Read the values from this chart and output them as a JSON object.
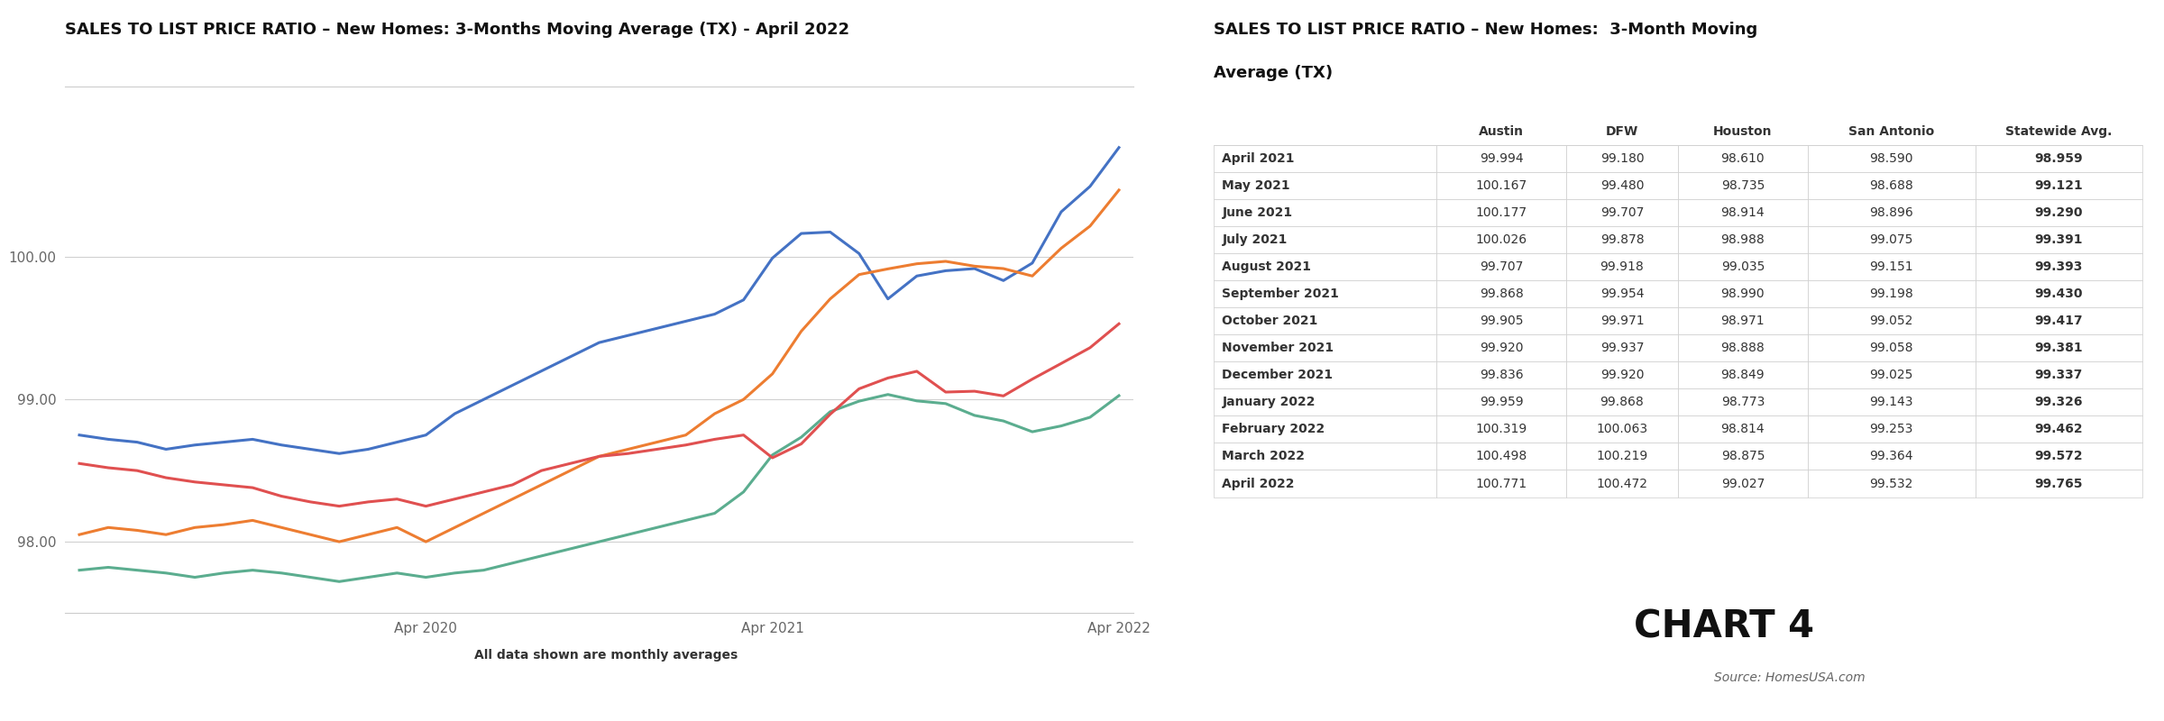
{
  "chart_title": "SALES TO LIST PRICE RATIO – New Homes: 3-Months Moving Average (TX) - April 2022",
  "table_title_line1": "SALES TO LIST PRICE RATIO – New Homes:  3-Month Moving",
  "table_title_line2": "Average (TX)",
  "chart4_label": "CHART 4",
  "source_label": "Source: HomesUSA.com",
  "subtitle": "All data shown are monthly averages",
  "legend_items": [
    "Austin",
    "DFW",
    "Houston",
    "San Antonio"
  ],
  "line_colors": {
    "Austin": "#4472C4",
    "DFW": "#ED7D31",
    "Houston": "#5BAD8F",
    "San Antonio": "#E05050"
  },
  "austin_data": [
    98.75,
    98.72,
    98.7,
    98.65,
    98.68,
    98.7,
    98.72,
    98.68,
    98.65,
    98.62,
    98.65,
    98.7,
    98.75,
    98.9,
    99.0,
    99.1,
    99.2,
    99.3,
    99.4,
    99.45,
    99.5,
    99.55,
    99.6,
    99.7,
    99.994,
    100.167,
    100.177,
    100.026,
    99.707,
    99.868,
    99.905,
    99.92,
    99.836,
    99.959,
    100.319,
    100.498,
    100.771
  ],
  "dfw_data": [
    98.05,
    98.1,
    98.08,
    98.05,
    98.1,
    98.12,
    98.15,
    98.1,
    98.05,
    98.0,
    98.05,
    98.1,
    98.0,
    98.1,
    98.2,
    98.3,
    98.4,
    98.5,
    98.6,
    98.65,
    98.7,
    98.75,
    98.9,
    99.0,
    99.18,
    99.48,
    99.707,
    99.878,
    99.918,
    99.954,
    99.971,
    99.937,
    99.92,
    99.868,
    100.063,
    100.219,
    100.472
  ],
  "houston_data": [
    97.8,
    97.82,
    97.8,
    97.78,
    97.75,
    97.78,
    97.8,
    97.78,
    97.75,
    97.72,
    97.75,
    97.78,
    97.75,
    97.78,
    97.8,
    97.85,
    97.9,
    97.95,
    98.0,
    98.05,
    98.1,
    98.15,
    98.2,
    98.35,
    98.61,
    98.735,
    98.914,
    98.988,
    99.035,
    98.99,
    98.971,
    98.888,
    98.849,
    98.773,
    98.814,
    98.875,
    99.027
  ],
  "san_antonio_data": [
    98.55,
    98.52,
    98.5,
    98.45,
    98.42,
    98.4,
    98.38,
    98.32,
    98.28,
    98.25,
    98.28,
    98.3,
    98.25,
    98.3,
    98.35,
    98.4,
    98.5,
    98.55,
    98.6,
    98.62,
    98.65,
    98.68,
    98.72,
    98.75,
    98.59,
    98.688,
    98.896,
    99.075,
    99.151,
    99.198,
    99.052,
    99.058,
    99.025,
    99.143,
    99.253,
    99.364,
    99.532
  ],
  "ylim": [
    97.5,
    101.2
  ],
  "yticks": [
    98.0,
    99.0,
    100.0
  ],
  "xtick_positions": [
    12,
    24,
    36
  ],
  "xtick_labels": [
    "Apr 2020",
    "Apr 2021",
    "Apr 2022"
  ],
  "n_points": 37,
  "table_rows": [
    {
      "month": "April 2021",
      "austin": "99.994",
      "dfw": "99.180",
      "houston": "98.610",
      "san_antonio": "98.590",
      "statewide": "98.959"
    },
    {
      "month": "May 2021",
      "austin": "100.167",
      "dfw": "99.480",
      "houston": "98.735",
      "san_antonio": "98.688",
      "statewide": "99.121"
    },
    {
      "month": "June 2021",
      "austin": "100.177",
      "dfw": "99.707",
      "houston": "98.914",
      "san_antonio": "98.896",
      "statewide": "99.290"
    },
    {
      "month": "July 2021",
      "austin": "100.026",
      "dfw": "99.878",
      "houston": "98.988",
      "san_antonio": "99.075",
      "statewide": "99.391"
    },
    {
      "month": "August 2021",
      "austin": "99.707",
      "dfw": "99.918",
      "houston": "99.035",
      "san_antonio": "99.151",
      "statewide": "99.393"
    },
    {
      "month": "September 2021",
      "austin": "99.868",
      "dfw": "99.954",
      "houston": "98.990",
      "san_antonio": "99.198",
      "statewide": "99.430"
    },
    {
      "month": "October 2021",
      "austin": "99.905",
      "dfw": "99.971",
      "houston": "98.971",
      "san_antonio": "99.052",
      "statewide": "99.417"
    },
    {
      "month": "November 2021",
      "austin": "99.920",
      "dfw": "99.937",
      "houston": "98.888",
      "san_antonio": "99.058",
      "statewide": "99.381"
    },
    {
      "month": "December 2021",
      "austin": "99.836",
      "dfw": "99.920",
      "houston": "98.849",
      "san_antonio": "99.025",
      "statewide": "99.337"
    },
    {
      "month": "January 2022",
      "austin": "99.959",
      "dfw": "99.868",
      "houston": "98.773",
      "san_antonio": "99.143",
      "statewide": "99.326"
    },
    {
      "month": "February 2022",
      "austin": "100.319",
      "dfw": "100.063",
      "houston": "98.814",
      "san_antonio": "99.253",
      "statewide": "99.462"
    },
    {
      "month": "March 2022",
      "austin": "100.498",
      "dfw": "100.219",
      "houston": "98.875",
      "san_antonio": "99.364",
      "statewide": "99.572"
    },
    {
      "month": "April 2022",
      "austin": "100.771",
      "dfw": "100.472",
      "houston": "99.027",
      "san_antonio": "99.532",
      "statewide": "99.765"
    }
  ],
  "table_columns": [
    "",
    "Austin",
    "DFW",
    "Houston",
    "San Antonio",
    "Statewide Avg."
  ],
  "background_color": "#ffffff",
  "line_width": 2.2
}
